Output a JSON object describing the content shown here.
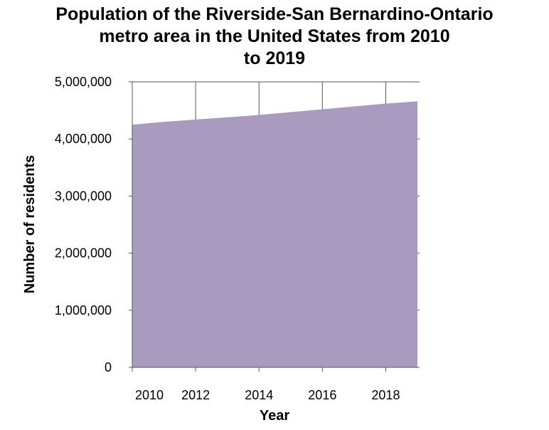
{
  "chart_data": {
    "type": "area",
    "title_lines": [
      "Population of the Riverside-San Bernardino-Ontario",
      "metro area in the United States from 2010",
      "to 2019"
    ],
    "xlabel": "Year",
    "ylabel": "Number of residents",
    "x": [
      2010,
      2011,
      2012,
      2013,
      2014,
      2015,
      2016,
      2017,
      2018,
      2019
    ],
    "values": [
      4250000,
      4300000,
      4340000,
      4380000,
      4420000,
      4470000,
      4520000,
      4570000,
      4620000,
      4660000
    ],
    "xlim": [
      2010,
      2019
    ],
    "ylim": [
      0,
      5000000
    ],
    "x_ticks": [
      2010,
      2012,
      2014,
      2016,
      2018
    ],
    "x_tick_labels": [
      "2010",
      "2012",
      "2014",
      "2016",
      "2018"
    ],
    "y_ticks": [
      0,
      1000000,
      2000000,
      3000000,
      4000000,
      5000000
    ],
    "y_tick_labels": [
      "0",
      "1,000,000",
      "2,000,000",
      "3,000,000",
      "4,000,000",
      "5,000,000"
    ],
    "grid": true,
    "fill_color": "#a99bbf",
    "axis_color": "#555555"
  }
}
